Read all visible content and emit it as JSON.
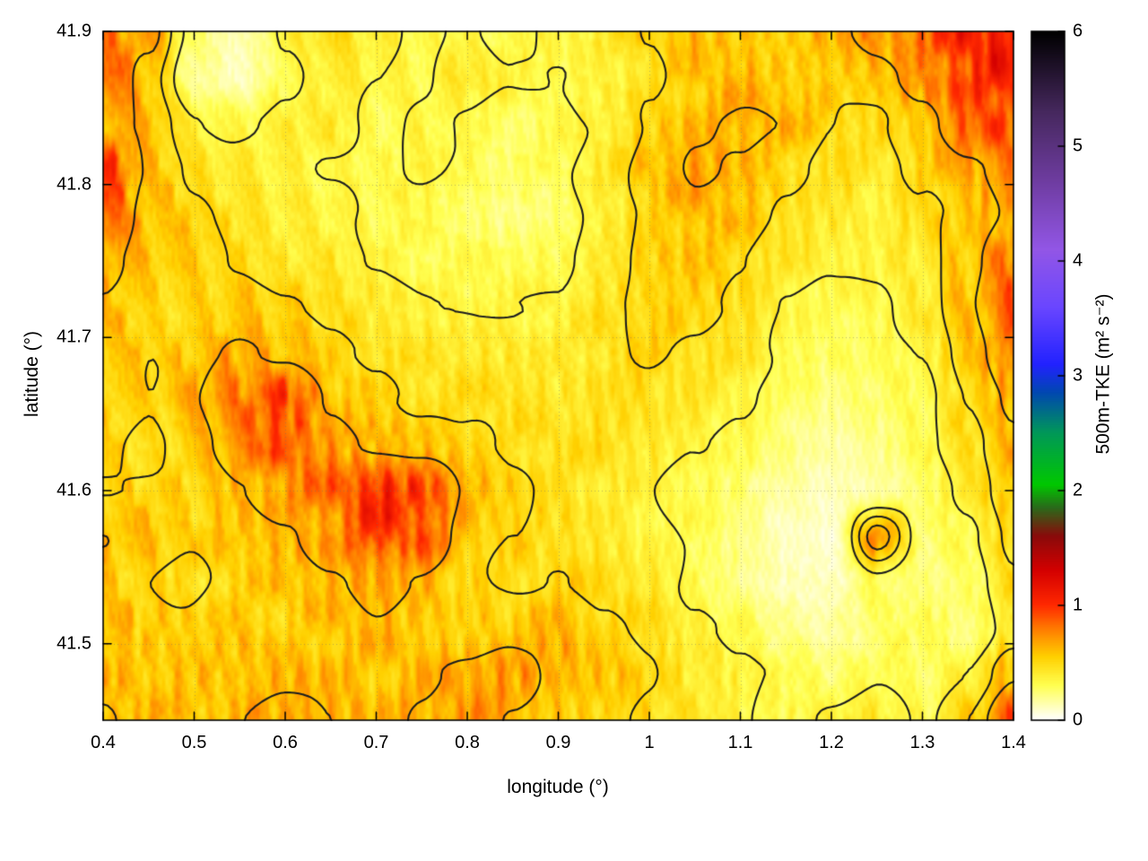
{
  "chart_data": {
    "type": "heatmap",
    "title": "",
    "xlabel": "longitude (°)",
    "ylabel": "latitude (°)",
    "x_range": [
      0.4,
      1.4
    ],
    "y_range": [
      41.45,
      41.9
    ],
    "x_ticks": [
      "0.4",
      "0.5",
      "0.6",
      "0.7",
      "0.8",
      "0.9",
      "1",
      "1.1",
      "1.2",
      "1.3",
      "1.4"
    ],
    "x_tick_values": [
      0.4,
      0.5,
      0.6,
      0.7,
      0.8,
      0.9,
      1.0,
      1.1,
      1.2,
      1.3,
      1.4
    ],
    "y_ticks": [
      "41.5",
      "41.6",
      "41.7",
      "41.8",
      "41.9"
    ],
    "y_tick_values": [
      41.5,
      41.6,
      41.7,
      41.8,
      41.9
    ],
    "grid_on": true,
    "legend_position": "none",
    "colorbar": {
      "label": "500m-TKE (m² s⁻²)",
      "range": [
        0,
        6
      ],
      "ticks": [
        "0",
        "1",
        "2",
        "3",
        "4",
        "5",
        "6"
      ],
      "tick_values": [
        0,
        1,
        2,
        3,
        4,
        5,
        6
      ],
      "palette_stops": [
        [
          0.0,
          "#ffffff"
        ],
        [
          0.3,
          "#ffff50"
        ],
        [
          0.55,
          "#ffd000"
        ],
        [
          0.8,
          "#ff7800"
        ],
        [
          1.0,
          "#ff2800"
        ],
        [
          1.3,
          "#d40000"
        ],
        [
          1.6,
          "#8a0a0a"
        ],
        [
          1.85,
          "#2a6a1a"
        ],
        [
          2.05,
          "#00c800"
        ],
        [
          2.5,
          "#009858"
        ],
        [
          2.85,
          "#0048b0"
        ],
        [
          3.1,
          "#2222ff"
        ],
        [
          3.6,
          "#6a46ff"
        ],
        [
          4.1,
          "#9256e6"
        ],
        [
          4.7,
          "#6e3ca0"
        ],
        [
          5.3,
          "#46285e"
        ],
        [
          6.0,
          "#000000"
        ]
      ]
    },
    "contour_levels": [
      0.33,
      0.48,
      0.62
    ],
    "contour_color": "#1e1e1e",
    "x": [
      0.4,
      0.45,
      0.5,
      0.55,
      0.6,
      0.65,
      0.7,
      0.75,
      0.8,
      0.85,
      0.9,
      0.95,
      1.0,
      1.05,
      1.1,
      1.15,
      1.2,
      1.25,
      1.3,
      1.35,
      1.4
    ],
    "y": [
      41.9,
      41.87,
      41.84,
      41.81,
      41.78,
      41.75,
      41.72,
      41.69,
      41.66,
      41.63,
      41.6,
      41.57,
      41.54,
      41.51,
      41.48,
      41.45
    ],
    "values": [
      [
        0.75,
        0.65,
        0.25,
        0.12,
        0.35,
        0.45,
        0.35,
        0.3,
        0.35,
        0.3,
        0.35,
        0.4,
        0.5,
        0.6,
        0.55,
        0.5,
        0.6,
        0.7,
        0.8,
        1.0,
        1.1
      ],
      [
        0.8,
        0.55,
        0.18,
        0.1,
        0.3,
        0.4,
        0.35,
        0.3,
        0.4,
        0.35,
        0.3,
        0.35,
        0.45,
        0.55,
        0.6,
        0.55,
        0.5,
        0.55,
        0.7,
        0.95,
        1.05
      ],
      [
        0.7,
        0.6,
        0.35,
        0.3,
        0.35,
        0.4,
        0.3,
        0.35,
        0.3,
        0.25,
        0.3,
        0.35,
        0.5,
        0.6,
        0.65,
        0.6,
        0.5,
        0.45,
        0.55,
        0.8,
        0.9
      ],
      [
        0.9,
        0.6,
        0.45,
        0.4,
        0.35,
        0.3,
        0.3,
        0.35,
        0.3,
        0.25,
        0.3,
        0.4,
        0.55,
        0.65,
        0.6,
        0.5,
        0.45,
        0.4,
        0.5,
        0.6,
        0.7
      ],
      [
        0.85,
        0.55,
        0.5,
        0.45,
        0.4,
        0.35,
        0.3,
        0.3,
        0.25,
        0.2,
        0.25,
        0.35,
        0.5,
        0.6,
        0.55,
        0.45,
        0.4,
        0.35,
        0.45,
        0.55,
        0.65
      ],
      [
        0.7,
        0.55,
        0.5,
        0.45,
        0.4,
        0.4,
        0.35,
        0.3,
        0.3,
        0.3,
        0.3,
        0.4,
        0.5,
        0.55,
        0.5,
        0.4,
        0.35,
        0.35,
        0.4,
        0.55,
        0.75
      ],
      [
        0.6,
        0.5,
        0.5,
        0.55,
        0.5,
        0.45,
        0.4,
        0.35,
        0.35,
        0.35,
        0.35,
        0.45,
        0.5,
        0.5,
        0.45,
        0.35,
        0.3,
        0.3,
        0.4,
        0.6,
        0.8
      ],
      [
        0.55,
        0.5,
        0.55,
        0.65,
        0.6,
        0.5,
        0.45,
        0.4,
        0.4,
        0.4,
        0.4,
        0.45,
        0.5,
        0.45,
        0.4,
        0.3,
        0.25,
        0.3,
        0.35,
        0.55,
        0.75
      ],
      [
        0.55,
        0.5,
        0.6,
        0.75,
        0.9,
        0.6,
        0.5,
        0.45,
        0.45,
        0.45,
        0.4,
        0.45,
        0.45,
        0.4,
        0.35,
        0.25,
        0.2,
        0.25,
        0.3,
        0.5,
        0.65
      ],
      [
        0.5,
        0.45,
        0.55,
        0.7,
        0.85,
        0.7,
        0.6,
        0.55,
        0.5,
        0.45,
        0.45,
        0.45,
        0.4,
        0.35,
        0.3,
        0.2,
        0.15,
        0.2,
        0.3,
        0.45,
        0.6
      ],
      [
        0.5,
        0.5,
        0.5,
        0.6,
        0.7,
        0.8,
        1.0,
        0.95,
        0.6,
        0.5,
        0.45,
        0.4,
        0.35,
        0.3,
        0.25,
        0.15,
        0.1,
        0.15,
        0.25,
        0.4,
        0.55
      ],
      [
        0.6,
        0.55,
        0.5,
        0.55,
        0.6,
        0.7,
        0.95,
        0.85,
        0.55,
        0.5,
        0.45,
        0.4,
        0.35,
        0.3,
        0.2,
        0.1,
        0.08,
        0.7,
        0.25,
        0.3,
        0.5
      ],
      [
        0.55,
        0.5,
        0.45,
        0.5,
        0.55,
        0.6,
        0.65,
        0.6,
        0.5,
        0.45,
        0.5,
        0.45,
        0.4,
        0.3,
        0.2,
        0.12,
        0.1,
        0.3,
        0.2,
        0.25,
        0.45
      ],
      [
        0.6,
        0.55,
        0.5,
        0.55,
        0.5,
        0.55,
        0.6,
        0.55,
        0.5,
        0.55,
        0.6,
        0.5,
        0.45,
        0.35,
        0.3,
        0.2,
        0.15,
        0.25,
        0.3,
        0.2,
        0.4
      ],
      [
        0.6,
        0.55,
        0.6,
        0.55,
        0.6,
        0.6,
        0.55,
        0.6,
        0.65,
        0.7,
        0.6,
        0.55,
        0.5,
        0.4,
        0.35,
        0.3,
        0.25,
        0.3,
        0.25,
        0.35,
        0.6
      ],
      [
        0.65,
        0.6,
        0.55,
        0.6,
        0.65,
        0.6,
        0.6,
        0.65,
        0.7,
        0.6,
        0.55,
        0.5,
        0.45,
        0.4,
        0.35,
        0.3,
        0.35,
        0.4,
        0.3,
        0.5,
        0.8
      ]
    ]
  }
}
